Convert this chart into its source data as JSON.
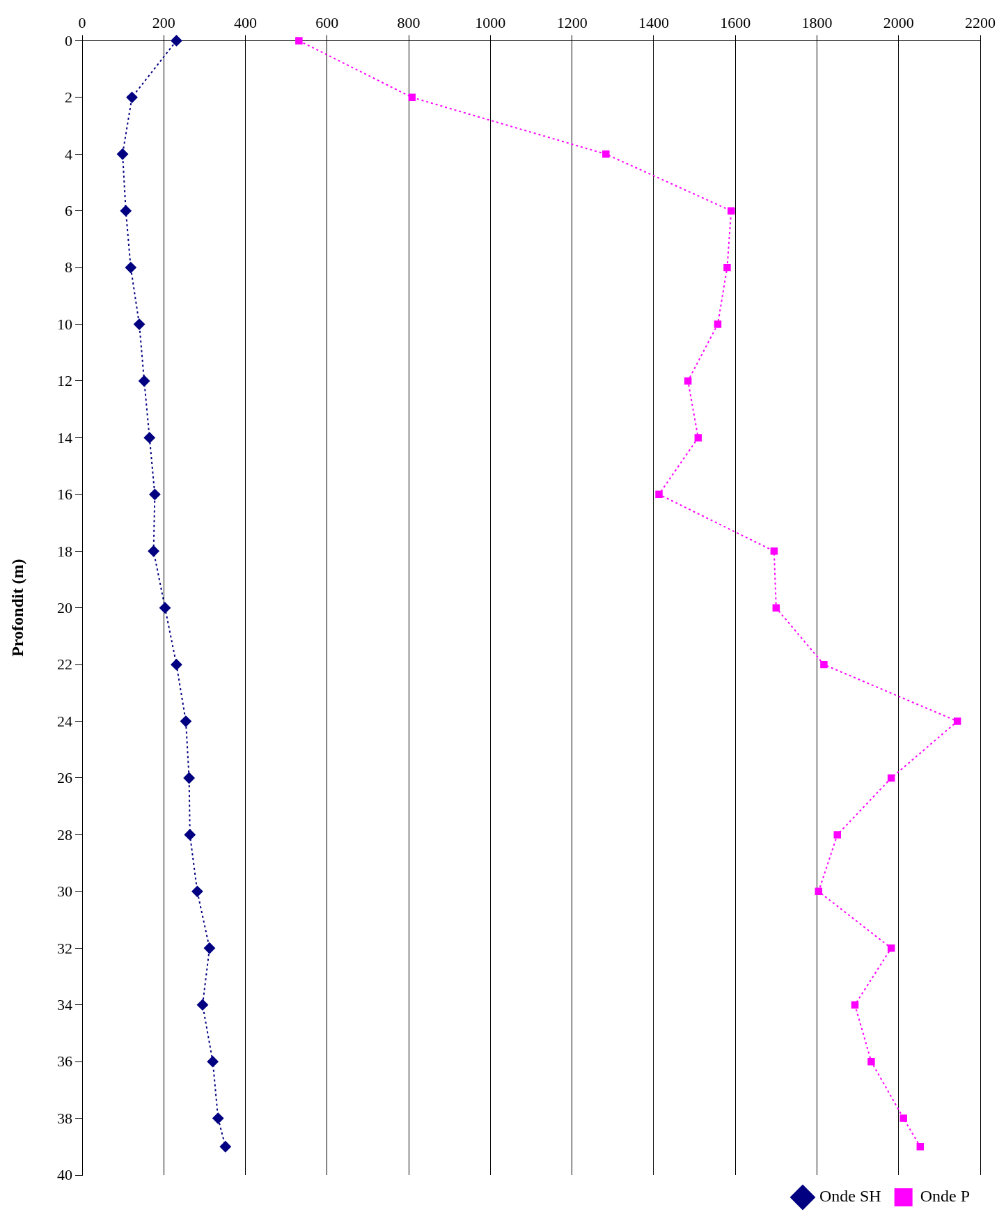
{
  "chart_data": {
    "type": "line",
    "ylabel": "Profondit (m)",
    "xlim": [
      0,
      2200
    ],
    "xticks": [
      0,
      200,
      400,
      600,
      800,
      1000,
      1200,
      1400,
      1600,
      1800,
      2000,
      2200
    ],
    "ylim": [
      40,
      0
    ],
    "yticks": [
      0,
      2,
      4,
      6,
      8,
      10,
      12,
      14,
      16,
      18,
      20,
      22,
      24,
      26,
      28,
      30,
      32,
      34,
      36,
      38,
      40
    ],
    "grid": "x",
    "legend": "bottom right",
    "line_style": "dotted",
    "series": [
      {
        "name": "Onde SH",
        "color": "#000080",
        "marker": "diamond",
        "x": [
          231,
          122,
          99,
          107,
          119,
          140,
          152,
          165,
          178,
          175,
          203,
          231,
          254,
          262,
          264,
          282,
          312,
          295,
          320,
          333,
          351
        ],
        "values": [
          0,
          2,
          4,
          6,
          8,
          10,
          12,
          14,
          16,
          18,
          20,
          22,
          24,
          26,
          28,
          30,
          32,
          34,
          36,
          38,
          39
        ]
      },
      {
        "name": "Onde P",
        "color": "#ff00ff",
        "marker": "square",
        "x": [
          531,
          808,
          1283,
          1590,
          1580,
          1557,
          1484,
          1509,
          1413,
          1695,
          1700,
          1817,
          2144,
          1982,
          1850,
          1804,
          1982,
          1893,
          1933,
          2012,
          2053
        ],
        "values": [
          0,
          2,
          4,
          6,
          8,
          10,
          12,
          14,
          16,
          18,
          20,
          22,
          24,
          26,
          28,
          30,
          32,
          34,
          36,
          38,
          39
        ]
      }
    ]
  }
}
